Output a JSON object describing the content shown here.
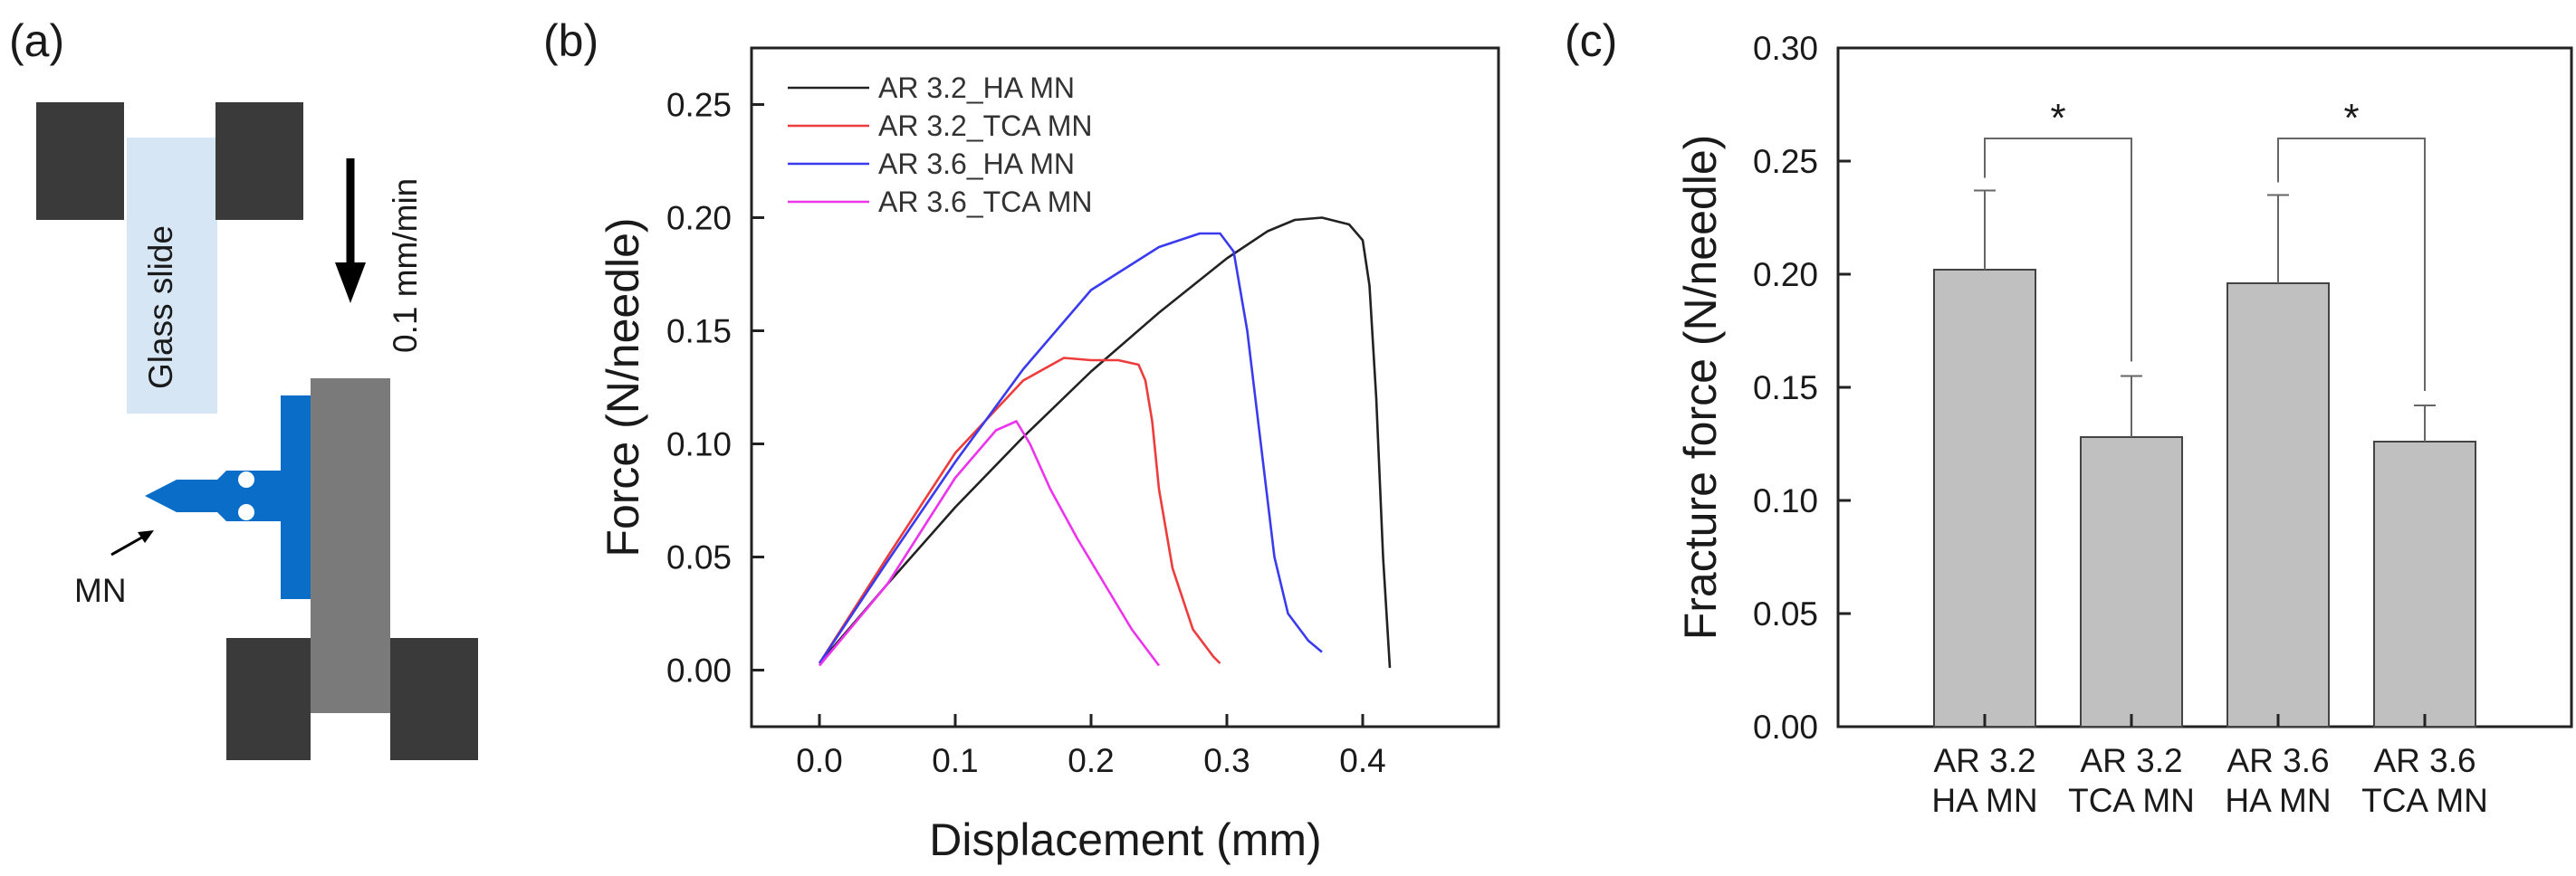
{
  "panel_a": {
    "label": "(a)",
    "glass_slide_label": "Glass slide",
    "speed_label": "0.1 mm/min",
    "mn_label": "MN"
  },
  "panel_b": {
    "label": "(b)"
  },
  "panel_c": {
    "label": "(c)"
  },
  "colors": {
    "block": "#3a3a3a",
    "holder": "#7a7a7a",
    "needle": "#0a6ec8",
    "glass": "#d7e6f4",
    "bar": "#c0c0c0"
  },
  "chart_data": [
    {
      "type": "line",
      "title": "",
      "xlabel": "Displacement (mm)",
      "ylabel": "Force (N/needle)",
      "xlim": [
        -0.05,
        0.5
      ],
      "ylim": [
        -0.025,
        0.275
      ],
      "xticks": [
        0.0,
        0.1,
        0.2,
        0.3,
        0.4
      ],
      "xtick_labels": [
        "0.0",
        "0.1",
        "0.2",
        "0.3",
        "0.4"
      ],
      "yticks": [
        0.0,
        0.05,
        0.1,
        0.15,
        0.2,
        0.25
      ],
      "ytick_labels": [
        "0.00",
        "0.05",
        "0.10",
        "0.15",
        "0.20",
        "0.25"
      ],
      "legend_position": "top-left",
      "series": [
        {
          "name": "AR 3.2_HA MN",
          "color": "#222222",
          "x": [
            0.0,
            0.05,
            0.1,
            0.15,
            0.2,
            0.25,
            0.3,
            0.33,
            0.35,
            0.37,
            0.39,
            0.4,
            0.405,
            0.41,
            0.415,
            0.42
          ],
          "y": [
            0.003,
            0.038,
            0.072,
            0.103,
            0.132,
            0.158,
            0.182,
            0.194,
            0.199,
            0.2,
            0.197,
            0.19,
            0.17,
            0.12,
            0.05,
            0.001
          ]
        },
        {
          "name": "AR 3.2_TCA MN",
          "color": "#ee3b3b",
          "x": [
            0.0,
            0.05,
            0.1,
            0.15,
            0.18,
            0.2,
            0.22,
            0.235,
            0.24,
            0.245,
            0.25,
            0.26,
            0.275,
            0.29,
            0.295
          ],
          "y": [
            0.003,
            0.05,
            0.096,
            0.128,
            0.138,
            0.137,
            0.137,
            0.135,
            0.128,
            0.11,
            0.08,
            0.045,
            0.018,
            0.006,
            0.003
          ]
        },
        {
          "name": "AR 3.6_HA MN",
          "color": "#3a3aef",
          "x": [
            0.0,
            0.05,
            0.1,
            0.15,
            0.2,
            0.25,
            0.28,
            0.295,
            0.305,
            0.315,
            0.325,
            0.335,
            0.345,
            0.36,
            0.37
          ],
          "y": [
            0.003,
            0.048,
            0.092,
            0.133,
            0.168,
            0.187,
            0.193,
            0.193,
            0.185,
            0.15,
            0.1,
            0.05,
            0.025,
            0.013,
            0.008
          ]
        },
        {
          "name": "AR 3.6_TCA MN",
          "color": "#ee33ee",
          "x": [
            0.0,
            0.05,
            0.1,
            0.13,
            0.145,
            0.155,
            0.17,
            0.19,
            0.21,
            0.23,
            0.25
          ],
          "y": [
            0.002,
            0.038,
            0.085,
            0.106,
            0.11,
            0.1,
            0.08,
            0.058,
            0.038,
            0.018,
            0.002
          ]
        }
      ]
    },
    {
      "type": "bar",
      "title": "",
      "xlabel": "",
      "ylabel": "Fracture force (N/needle)",
      "ylim": [
        0.0,
        0.3
      ],
      "yticks": [
        0.0,
        0.05,
        0.1,
        0.15,
        0.2,
        0.25,
        0.3
      ],
      "ytick_labels": [
        "0.00",
        "0.05",
        "0.10",
        "0.15",
        "0.20",
        "0.25",
        "0.30"
      ],
      "categories": [
        [
          "AR 3.2",
          "HA MN"
        ],
        [
          "AR 3.2",
          "TCA MN"
        ],
        [
          "AR 3.6",
          "HA MN"
        ],
        [
          "AR 3.6",
          "TCA MN"
        ]
      ],
      "values": [
        0.202,
        0.128,
        0.196,
        0.126
      ],
      "errors": [
        0.035,
        0.027,
        0.039,
        0.016
      ],
      "significance": [
        {
          "between": [
            0,
            1
          ],
          "y": 0.26,
          "label": "*"
        },
        {
          "between": [
            2,
            3
          ],
          "y": 0.26,
          "label": "*"
        }
      ]
    }
  ]
}
